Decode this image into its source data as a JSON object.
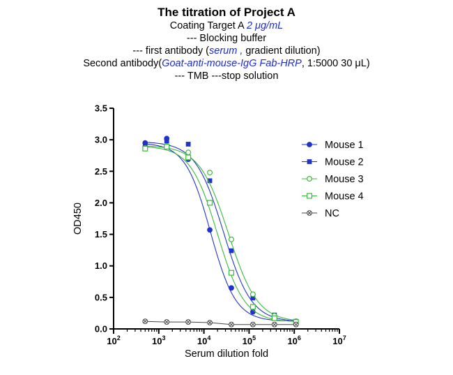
{
  "header": {
    "title": "The titration of Project A",
    "line1": {
      "a": "Coating Target A ",
      "b": "2 μg/mL"
    },
    "line2": "--- Blocking buffer",
    "line3": {
      "a": "--- first antibody (",
      "b": "serum ,",
      "c": " gradient dilution)"
    },
    "line4": {
      "a": "Second antibody(",
      "b": "Goat-anti-mouse-IgG Fab-HRP",
      "c": ", 1:5000 30 μL)"
    },
    "line5": "--- TMB ---stop solution"
  },
  "chart_data": {
    "type": "scatter",
    "xlabel": "Serum dilution fold",
    "ylabel": "OD450",
    "xscale": "log",
    "xlim": [
      100,
      10000000
    ],
    "ylim": [
      0,
      3.5
    ],
    "x_ticks": [
      {
        "base": "10",
        "exp": "2"
      },
      {
        "base": "10",
        "exp": "3"
      },
      {
        "base": "10",
        "exp": "4"
      },
      {
        "base": "10",
        "exp": "5"
      },
      {
        "base": "10",
        "exp": "6"
      },
      {
        "base": "10",
        "exp": "7"
      }
    ],
    "y_ticks": [
      "0.0",
      "0.5",
      "1.0",
      "1.5",
      "2.0",
      "2.5",
      "3.0",
      "3.5"
    ],
    "x": [
      500,
      1500,
      4500,
      13500,
      40500,
      121500,
      364500,
      1093500
    ],
    "grid": false,
    "legend_position": "right",
    "series": [
      {
        "name": "Mouse 1",
        "marker": "circle-filled",
        "color": "#2233cc",
        "values": [
          2.95,
          3.02,
          2.69,
          1.57,
          0.65,
          0.27,
          0.17,
          0.12
        ],
        "fit": {
          "top": 2.95,
          "bottom": 0.12,
          "ec50": 14000,
          "hill": 1.55
        }
      },
      {
        "name": "Mouse 2",
        "marker": "square-filled",
        "color": "#2233cc",
        "values": [
          2.92,
          2.98,
          2.93,
          2.35,
          1.24,
          0.49,
          0.22,
          0.12
        ],
        "fit": {
          "top": 2.97,
          "bottom": 0.11,
          "ec50": 27000,
          "hill": 1.4
        }
      },
      {
        "name": "Mouse 3",
        "marker": "circle-open",
        "color": "#3ab83a",
        "values": [
          2.87,
          2.9,
          2.8,
          2.48,
          1.42,
          0.55,
          0.21,
          0.12
        ],
        "fit": {
          "top": 2.91,
          "bottom": 0.11,
          "ec50": 35000,
          "hill": 1.35
        }
      },
      {
        "name": "Mouse 4",
        "marker": "square-open",
        "color": "#3ab83a",
        "values": [
          2.86,
          2.89,
          2.72,
          2.0,
          0.89,
          0.35,
          0.17,
          0.11
        ],
        "fit": {
          "top": 2.9,
          "bottom": 0.11,
          "ec50": 20000,
          "hill": 1.45
        }
      },
      {
        "name": "NC",
        "marker": "circle-x",
        "color": "#444444",
        "values": [
          0.12,
          0.11,
          0.11,
          0.1,
          0.07,
          0.07,
          0.07,
          0.07
        ],
        "connect": true
      }
    ]
  }
}
